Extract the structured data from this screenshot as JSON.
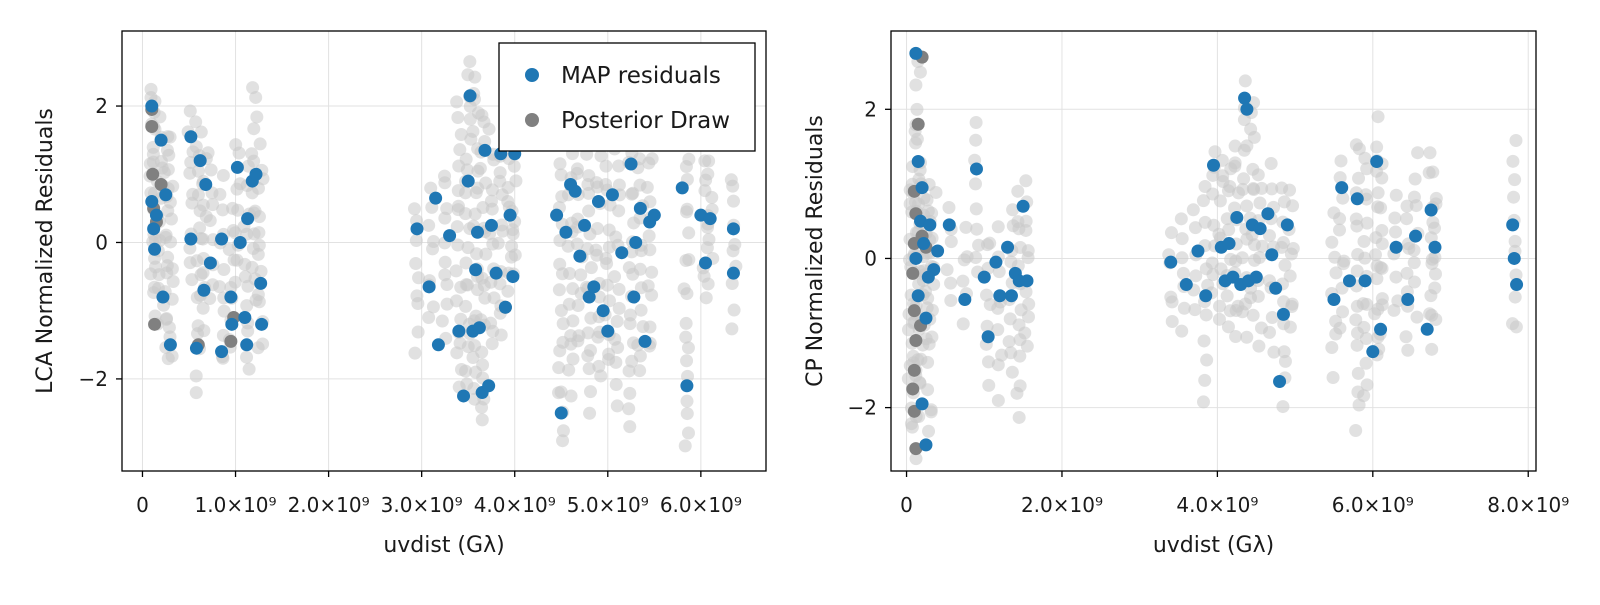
{
  "colors": {
    "map": "#1f77b4",
    "posterior": "#808080",
    "posterior_faint": "#c8c8c8",
    "grid": "#e2e2e2",
    "axis": "#000000"
  },
  "legend": {
    "entries": [
      "MAP residuals",
      "Posterior Draw"
    ],
    "placement": "top-right (left panel)"
  },
  "chart_data": [
    {
      "type": "scatter",
      "title": "",
      "xlabel": "uvdist (Gλ)",
      "ylabel": "LCA Normalized Residuals",
      "xlim": [
        -220000000.0,
        6700000000.0
      ],
      "ylim": [
        -3.35,
        3.1
      ],
      "grid": true,
      "xticks": [
        0,
        1000000000.0,
        2000000000.0,
        3000000000.0,
        4000000000.0,
        5000000000.0,
        6000000000.0
      ],
      "xtick_labels": [
        "0",
        "1.0×10⁹",
        "2.0×10⁹",
        "3.0×10⁹",
        "4.0×10⁹",
        "5.0×10⁹",
        "6.0×10⁹"
      ],
      "yticks": [
        -2,
        0,
        2
      ],
      "ytick_labels": [
        "−2",
        "0",
        "2"
      ],
      "series": [
        {
          "name": "MAP residuals",
          "x": [
            100000000.0,
            100000000.0,
            120000000.0,
            130000000.0,
            150000000.0,
            200000000.0,
            220000000.0,
            250000000.0,
            300000000.0,
            520000000.0,
            520000000.0,
            580000000.0,
            620000000.0,
            660000000.0,
            680000000.0,
            730000000.0,
            850000000.0,
            850000000.0,
            950000000.0,
            960000000.0,
            1020000000.0,
            1050000000.0,
            1100000000.0,
            1120000000.0,
            1130000000.0,
            1180000000.0,
            1220000000.0,
            1270000000.0,
            1280000000.0,
            2950000000.0,
            3080000000.0,
            3150000000.0,
            3180000000.0,
            3300000000.0,
            3400000000.0,
            3450000000.0,
            3500000000.0,
            3520000000.0,
            3550000000.0,
            3580000000.0,
            3600000000.0,
            3620000000.0,
            3650000000.0,
            3680000000.0,
            3720000000.0,
            3750000000.0,
            3800000000.0,
            3850000000.0,
            3900000000.0,
            3950000000.0,
            3980000000.0,
            4000000000.0,
            4450000000.0,
            4500000000.0,
            4550000000.0,
            4600000000.0,
            4650000000.0,
            4700000000.0,
            4750000000.0,
            4800000000.0,
            4850000000.0,
            4900000000.0,
            4950000000.0,
            5000000000.0,
            5050000000.0,
            5150000000.0,
            5250000000.0,
            5280000000.0,
            5300000000.0,
            5350000000.0,
            5400000000.0,
            5450000000.0,
            5500000000.0,
            5800000000.0,
            5850000000.0,
            6000000000.0,
            6050000000.0,
            6100000000.0,
            6350000000.0,
            6350000000.0
          ],
          "y": [
            2.0,
            0.6,
            0.2,
            -0.1,
            0.4,
            1.5,
            -0.8,
            0.7,
            -1.5,
            1.55,
            0.05,
            -1.55,
            1.2,
            -0.7,
            0.85,
            -0.3,
            -1.6,
            0.05,
            -0.8,
            -1.2,
            1.1,
            0.0,
            -1.1,
            -1.5,
            0.35,
            0.9,
            1.0,
            -0.6,
            -1.2,
            0.2,
            -0.65,
            0.65,
            -1.5,
            0.1,
            -1.3,
            -2.25,
            0.9,
            2.15,
            -1.3,
            -0.4,
            0.15,
            -1.25,
            -2.2,
            1.35,
            -2.1,
            0.25,
            -0.45,
            1.3,
            -0.95,
            0.4,
            -0.5,
            1.3,
            0.4,
            -2.5,
            0.15,
            0.85,
            0.75,
            -0.2,
            0.25,
            -0.8,
            -0.65,
            0.6,
            -1.0,
            -1.3,
            0.7,
            -0.15,
            1.15,
            -0.8,
            0.0,
            0.5,
            -1.45,
            0.3,
            0.4,
            0.8,
            -2.1,
            0.4,
            -0.3,
            0.35,
            0.2,
            -0.45
          ]
        },
        {
          "name": "Posterior Draw",
          "points": [
            [
              100000000.0,
              1.7
            ],
            [
              100000000.0,
              1.95
            ],
            [
              110000000.0,
              1.0
            ],
            [
              120000000.0,
              0.5
            ],
            [
              130000000.0,
              -1.2
            ],
            [
              150000000.0,
              0.3
            ],
            [
              200000000.0,
              0.85
            ],
            [
              600000000.0,
              -1.5
            ],
            [
              950000000.0,
              -1.45
            ],
            [
              980000000.0,
              -1.1
            ],
            [
              3900000000.0,
              -0.95
            ]
          ]
        }
      ],
      "posterior_cloud": [
        {
          "x": 100000000.0,
          "lo": -0.5,
          "hi": 2.3
        },
        {
          "x": 140000000.0,
          "lo": -1.3,
          "hi": 2.1
        },
        {
          "x": 200000000.0,
          "lo": -0.9,
          "hi": 1.8
        },
        {
          "x": 250000000.0,
          "lo": -1.7,
          "hi": 1.6
        },
        {
          "x": 300000000.0,
          "lo": -1.6,
          "hi": 1.5
        },
        {
          "x": 520000000.0,
          "lo": -0.5,
          "hi": 1.9
        },
        {
          "x": 600000000.0,
          "lo": -2.1,
          "hi": 1.7
        },
        {
          "x": 660000000.0,
          "lo": -1.2,
          "hi": 1.5
        },
        {
          "x": 730000000.0,
          "lo": -0.8,
          "hi": 1.3
        },
        {
          "x": 850000000.0,
          "lo": -1.8,
          "hi": 0.9
        },
        {
          "x": 960000000.0,
          "lo": -1.6,
          "hi": 0.5
        },
        {
          "x": 1020000000.0,
          "lo": -0.6,
          "hi": 1.5
        },
        {
          "x": 1120000000.0,
          "lo": -1.9,
          "hi": 1.0
        },
        {
          "x": 1200000000.0,
          "lo": -0.9,
          "hi": 2.3
        },
        {
          "x": 1270000000.0,
          "lo": -1.6,
          "hi": 1.4
        },
        {
          "x": 2950000000.0,
          "lo": -1.5,
          "hi": 0.6
        },
        {
          "x": 3100000000.0,
          "lo": -1.2,
          "hi": 0.8
        },
        {
          "x": 3250000000.0,
          "lo": -1.4,
          "hi": 1.0
        },
        {
          "x": 3400000000.0,
          "lo": -2.2,
          "hi": 2.0
        },
        {
          "x": 3500000000.0,
          "lo": -2.1,
          "hi": 2.7
        },
        {
          "x": 3580000000.0,
          "lo": -2.4,
          "hi": 2.5
        },
        {
          "x": 3660000000.0,
          "lo": -2.7,
          "hi": 1.9
        },
        {
          "x": 3750000000.0,
          "lo": -1.6,
          "hi": 1.6
        },
        {
          "x": 3850000000.0,
          "lo": -1.3,
          "hi": 1.3
        },
        {
          "x": 3950000000.0,
          "lo": -0.8,
          "hi": 1.4
        },
        {
          "x": 4000000000.0,
          "lo": -0.5,
          "hi": 1.3
        },
        {
          "x": 4500000000.0,
          "lo": -3.0,
          "hi": 1.2
        },
        {
          "x": 4600000000.0,
          "lo": -2.2,
          "hi": 1.3
        },
        {
          "x": 4700000000.0,
          "lo": -1.5,
          "hi": 1.2
        },
        {
          "x": 4800000000.0,
          "lo": -2.4,
          "hi": 1.3
        },
        {
          "x": 4900000000.0,
          "lo": -2.0,
          "hi": 1.2
        },
        {
          "x": 5000000000.0,
          "lo": -1.8,
          "hi": 1.2
        },
        {
          "x": 5100000000.0,
          "lo": -2.3,
          "hi": 1.3
        },
        {
          "x": 5250000000.0,
          "lo": -2.7,
          "hi": 1.3
        },
        {
          "x": 5350000000.0,
          "lo": -1.9,
          "hi": 1.3
        },
        {
          "x": 5450000000.0,
          "lo": -1.6,
          "hi": 1.3
        },
        {
          "x": 5850000000.0,
          "lo": -3.0,
          "hi": 1.3
        },
        {
          "x": 6050000000.0,
          "lo": -0.8,
          "hi": 1.3
        },
        {
          "x": 6100000000.0,
          "lo": -0.5,
          "hi": 1.2
        },
        {
          "x": 6350000000.0,
          "lo": -1.2,
          "hi": 1.0
        }
      ]
    },
    {
      "type": "scatter",
      "title": "",
      "xlabel": "uvdist (Gλ)",
      "ylabel": "CP Normalized Residuals",
      "xlim": [
        -200000000.0,
        8100000000.0
      ],
      "ylim": [
        -2.85,
        3.05
      ],
      "grid": true,
      "xticks": [
        0,
        2000000000.0,
        4000000000.0,
        6000000000.0,
        8000000000.0
      ],
      "xtick_labels": [
        "0",
        "2.0×10⁹",
        "4.0×10⁹",
        "6.0×10⁹",
        "8.0×10⁹"
      ],
      "yticks": [
        -2,
        0,
        2
      ],
      "ytick_labels": [
        "−2",
        "0",
        "2"
      ],
      "series": [
        {
          "name": "MAP residuals",
          "x": [
            120000000.0,
            150000000.0,
            180000000.0,
            220000000.0,
            250000000.0,
            300000000.0,
            350000000.0,
            400000000.0,
            150000000.0,
            200000000.0,
            250000000.0,
            120000000.0,
            280000000.0,
            200000000.0,
            550000000.0,
            750000000.0,
            900000000.0,
            1000000000.0,
            1050000000.0,
            1150000000.0,
            1200000000.0,
            1300000000.0,
            1350000000.0,
            1400000000.0,
            1500000000.0,
            1450000000.0,
            1550000000.0,
            3400000000.0,
            3600000000.0,
            3750000000.0,
            3850000000.0,
            3950000000.0,
            4050000000.0,
            4100000000.0,
            4150000000.0,
            4200000000.0,
            4250000000.0,
            4300000000.0,
            4350000000.0,
            4380000000.0,
            4400000000.0,
            4450000000.0,
            4500000000.0,
            4550000000.0,
            4650000000.0,
            4700000000.0,
            4750000000.0,
            4800000000.0,
            4850000000.0,
            4900000000.0,
            5500000000.0,
            5600000000.0,
            5700000000.0,
            5800000000.0,
            5900000000.0,
            6000000000.0,
            6050000000.0,
            6100000000.0,
            6300000000.0,
            6450000000.0,
            6550000000.0,
            6700000000.0,
            6750000000.0,
            6800000000.0,
            7800000000.0,
            7820000000.0,
            7850000000.0
          ],
          "y": [
            2.75,
            1.3,
            0.5,
            0.2,
            -0.8,
            0.45,
            -0.15,
            0.1,
            -0.5,
            -1.95,
            -2.5,
            0.0,
            -0.25,
            0.95,
            0.45,
            -0.55,
            1.2,
            -0.25,
            -1.05,
            -0.05,
            -0.5,
            0.15,
            -0.5,
            -0.2,
            0.7,
            -0.3,
            -0.3,
            -0.05,
            -0.35,
            0.1,
            -0.5,
            1.25,
            0.15,
            -0.3,
            0.2,
            -0.25,
            0.55,
            -0.35,
            2.15,
            2.0,
            -0.3,
            0.45,
            -0.25,
            0.4,
            0.6,
            0.05,
            -0.4,
            -1.65,
            -0.75,
            0.45,
            -0.55,
            0.95,
            -0.3,
            0.8,
            -0.3,
            -1.25,
            1.3,
            -0.95,
            0.15,
            -0.55,
            0.3,
            -0.95,
            0.65,
            0.15,
            0.45,
            0.0,
            -0.35
          ]
        },
        {
          "name": "Posterior Draw",
          "points": [
            [
              150000000.0,
              1.8
            ],
            [
              200000000.0,
              2.7
            ],
            [
              100000000.0,
              0.9
            ],
            [
              120000000.0,
              0.6
            ],
            [
              100000000.0,
              0.2
            ],
            [
              80000000.0,
              -0.2
            ],
            [
              100000000.0,
              -0.7
            ],
            [
              120000000.0,
              -1.1
            ],
            [
              100000000.0,
              -1.5
            ],
            [
              80000000.0,
              -1.75
            ],
            [
              100000000.0,
              -2.05
            ],
            [
              120000000.0,
              -2.55
            ],
            [
              180000000.0,
              -0.9
            ],
            [
              200000000.0,
              0.3
            ],
            [
              250000000.0,
              0.15
            ]
          ]
        }
      ],
      "posterior_cloud": [
        {
          "x": 50000000.0,
          "lo": -2.2,
          "hi": 1.0
        },
        {
          "x": 100000000.0,
          "lo": -2.6,
          "hi": 1.8
        },
        {
          "x": 150000000.0,
          "lo": -2.0,
          "hi": 2.7
        },
        {
          "x": 200000000.0,
          "lo": -1.7,
          "hi": 1.2
        },
        {
          "x": 250000000.0,
          "lo": -1.0,
          "hi": 0.9
        },
        {
          "x": 300000000.0,
          "lo": -2.4,
          "hi": 1.0
        },
        {
          "x": 350000000.0,
          "lo": -0.6,
          "hi": 0.8
        },
        {
          "x": 550000000.0,
          "lo": -0.5,
          "hi": 0.6
        },
        {
          "x": 750000000.0,
          "lo": -0.8,
          "hi": 0.3
        },
        {
          "x": 900000000.0,
          "lo": -0.3,
          "hi": 1.8
        },
        {
          "x": 1050000000.0,
          "lo": -1.6,
          "hi": 0.3
        },
        {
          "x": 1200000000.0,
          "lo": -1.8,
          "hi": 0.3
        },
        {
          "x": 1350000000.0,
          "lo": -1.6,
          "hi": 0.6
        },
        {
          "x": 1450000000.0,
          "lo": -2.1,
          "hi": 0.8
        },
        {
          "x": 1550000000.0,
          "lo": -1.3,
          "hi": 1.1
        },
        {
          "x": 3400000000.0,
          "lo": -0.9,
          "hi": 0.3
        },
        {
          "x": 3550000000.0,
          "lo": -1.0,
          "hi": 0.5
        },
        {
          "x": 3700000000.0,
          "lo": -0.7,
          "hi": 0.6
        },
        {
          "x": 3850000000.0,
          "lo": -1.8,
          "hi": 0.9
        },
        {
          "x": 3950000000.0,
          "lo": -0.5,
          "hi": 1.5
        },
        {
          "x": 4050000000.0,
          "lo": -0.8,
          "hi": 1.4
        },
        {
          "x": 4150000000.0,
          "lo": -0.9,
          "hi": 1.3
        },
        {
          "x": 4250000000.0,
          "lo": -1.0,
          "hi": 1.6
        },
        {
          "x": 4350000000.0,
          "lo": -1.0,
          "hi": 2.3
        },
        {
          "x": 4450000000.0,
          "lo": -0.8,
          "hi": 2.2
        },
        {
          "x": 4550000000.0,
          "lo": -1.1,
          "hi": 1.2
        },
        {
          "x": 4700000000.0,
          "lo": -1.2,
          "hi": 1.3
        },
        {
          "x": 4850000000.0,
          "lo": -1.9,
          "hi": 1.0
        },
        {
          "x": 4950000000.0,
          "lo": -1.0,
          "hi": 0.9
        },
        {
          "x": 5500000000.0,
          "lo": -1.5,
          "hi": 0.5
        },
        {
          "x": 5600000000.0,
          "lo": -0.9,
          "hi": 1.3
        },
        {
          "x": 5800000000.0,
          "lo": -2.2,
          "hi": 1.6
        },
        {
          "x": 5900000000.0,
          "lo": -1.9,
          "hi": 1.4
        },
        {
          "x": 6050000000.0,
          "lo": -1.3,
          "hi": 1.8
        },
        {
          "x": 6100000000.0,
          "lo": -1.2,
          "hi": 1.2
        },
        {
          "x": 6300000000.0,
          "lo": -0.7,
          "hi": 0.8
        },
        {
          "x": 6450000000.0,
          "lo": -1.2,
          "hi": 0.8
        },
        {
          "x": 6550000000.0,
          "lo": -0.7,
          "hi": 1.4
        },
        {
          "x": 6750000000.0,
          "lo": -1.1,
          "hi": 1.5
        },
        {
          "x": 6800000000.0,
          "lo": -0.7,
          "hi": 0.9
        },
        {
          "x": 7820000000.0,
          "lo": -1.0,
          "hi": 1.5
        }
      ]
    }
  ]
}
